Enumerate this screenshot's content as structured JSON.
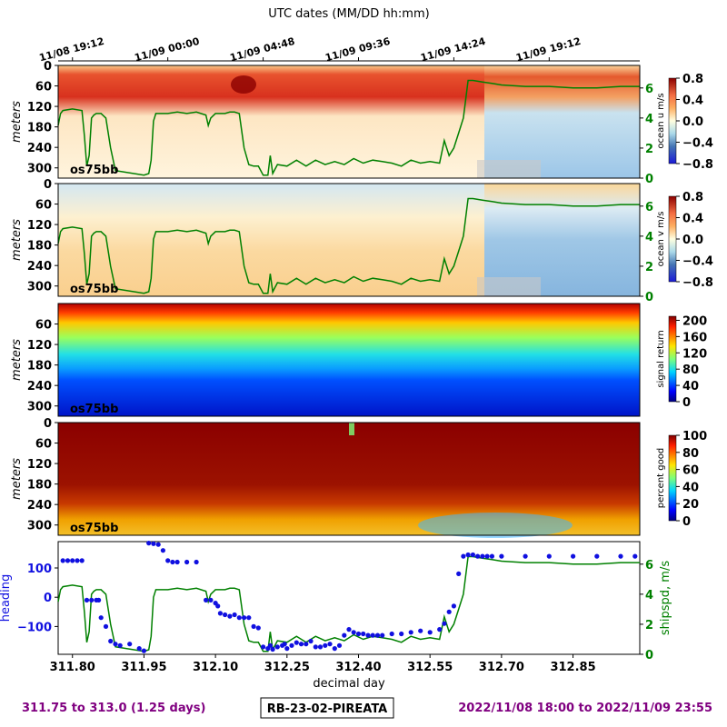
{
  "top_axis": {
    "label": "UTC dates (MM/DD hh:mm)",
    "ticks": [
      {
        "day": 311.8,
        "label": "11/08 19:12"
      },
      {
        "day": 312.0,
        "label": "11/09 00:00"
      },
      {
        "day": 312.2,
        "label": "11/09 04:48"
      },
      {
        "day": 312.4,
        "label": "11/09 09:36"
      },
      {
        "day": 312.6,
        "label": "11/09 14:24"
      },
      {
        "day": 312.8,
        "label": "11/09 19:12"
      }
    ]
  },
  "footer": {
    "range_days": "311.75 to 313.0 (1.25 days)",
    "cruise_id": "RB-23-02-PIREATA",
    "date_range": "2022/11/08 18:00 to 2022/11/09 23:55"
  },
  "colors": {
    "ship_speed": "#008000",
    "heading": "#1010e0",
    "footer_text": "#800080"
  },
  "chart_data": [
    {
      "type": "heatmap",
      "title": "",
      "instrument_label": "os75bb",
      "ylabel": "meters",
      "yticks": [
        0,
        60,
        120,
        180,
        240,
        300
      ],
      "ylim": [
        330,
        0
      ],
      "xlim": [
        311.77,
        312.99
      ],
      "colorbar": {
        "label": "ocean u m/s",
        "ticks": [
          "0.8",
          "0.4",
          "0.0",
          "−0.4",
          "−0.8"
        ],
        "range": [
          -0.8,
          0.8
        ],
        "colormap": "RdYlBu_r"
      },
      "overlay": {
        "name": "ship speed",
        "right_ticks": [
          "6",
          "4",
          "2",
          "0"
        ],
        "range": [
          0,
          7.5
        ]
      }
    },
    {
      "type": "heatmap",
      "title": "",
      "instrument_label": "os75bb",
      "ylabel": "meters",
      "yticks": [
        0,
        60,
        120,
        180,
        240,
        300
      ],
      "ylim": [
        330,
        0
      ],
      "xlim": [
        311.77,
        312.99
      ],
      "colorbar": {
        "label": "ocean v m/s",
        "ticks": [
          "0.8",
          "0.4",
          "0.0",
          "−0.4",
          "−0.8"
        ],
        "range": [
          -0.8,
          0.8
        ],
        "colormap": "RdYlBu_r"
      },
      "overlay": {
        "name": "ship speed",
        "right_ticks": [
          "6",
          "4",
          "2",
          "0"
        ],
        "range": [
          0,
          7.5
        ]
      }
    },
    {
      "type": "heatmap",
      "title": "",
      "instrument_label": "os75bb",
      "ylabel": "meters",
      "yticks": [
        60,
        120,
        180,
        240,
        300
      ],
      "ylim": [
        330,
        0
      ],
      "xlim": [
        311.77,
        312.99
      ],
      "colorbar": {
        "label": "signal return",
        "ticks": [
          "200",
          "160",
          "120",
          "80",
          "40",
          "0"
        ],
        "range": [
          0,
          210
        ],
        "colormap": "jet"
      }
    },
    {
      "type": "heatmap",
      "title": "",
      "instrument_label": "os75bb",
      "ylabel": "meters",
      "yticks": [
        0,
        60,
        120,
        180,
        240,
        300
      ],
      "ylim": [
        330,
        0
      ],
      "xlim": [
        311.77,
        312.99
      ],
      "colorbar": {
        "label": "percent good",
        "ticks": [
          "100",
          "80",
          "60",
          "40",
          "20",
          "0"
        ],
        "range": [
          0,
          100
        ],
        "colormap": "jet"
      }
    },
    {
      "type": "scatter",
      "title": "",
      "xlabel": "decimal day",
      "xlim": [
        311.77,
        312.99
      ],
      "xticks": [
        "311.80",
        "311.95",
        "312.10",
        "312.25",
        "312.40",
        "312.55",
        "312.70",
        "312.85"
      ],
      "xtick_values": [
        311.8,
        311.95,
        312.1,
        312.25,
        312.4,
        312.55,
        312.7,
        312.85
      ],
      "left_axis": {
        "label": "heading",
        "ticks": [
          "100",
          "0",
          "−100"
        ],
        "tick_values": [
          100,
          0,
          -100
        ],
        "ylim": [
          -195,
          190
        ]
      },
      "right_axis": {
        "label": "shipspd, m/s",
        "ticks": [
          "6",
          "4",
          "2",
          "0"
        ],
        "tick_values": [
          6,
          4,
          2,
          0
        ],
        "ylim": [
          0,
          7.5
        ]
      },
      "series": [
        {
          "name": "heading",
          "x": [
            311.78,
            311.79,
            311.8,
            311.81,
            311.82,
            311.83,
            311.84,
            311.85,
            311.855,
            311.86,
            311.87,
            311.88,
            311.89,
            311.9,
            311.92,
            311.94,
            311.95,
            311.96,
            311.97,
            311.98,
            311.99,
            312.0,
            312.01,
            312.02,
            312.04,
            312.06,
            312.08,
            312.09,
            312.1,
            312.105,
            312.11,
            312.12,
            312.13,
            312.14,
            312.15,
            312.16,
            312.17,
            312.18,
            312.19,
            312.2,
            312.21,
            312.215,
            312.22,
            312.23,
            312.24,
            312.245,
            312.25,
            312.26,
            312.27,
            312.28,
            312.29,
            312.3,
            312.31,
            312.32,
            312.33,
            312.34,
            312.35,
            312.36,
            312.37,
            312.38,
            312.39,
            312.4,
            312.41,
            312.42,
            312.43,
            312.44,
            312.45,
            312.47,
            312.49,
            312.51,
            312.53,
            312.55,
            312.57,
            312.58,
            312.59,
            312.6,
            312.61,
            312.62,
            312.63,
            312.64,
            312.65,
            312.66,
            312.67,
            312.68,
            312.7,
            312.75,
            312.8,
            312.85,
            312.9,
            312.95,
            312.98
          ],
          "values": [
            125,
            125,
            125,
            125,
            125,
            -10,
            -10,
            -10,
            -10,
            -70,
            -100,
            -150,
            -160,
            -165,
            -160,
            -175,
            -183,
            185,
            183,
            180,
            160,
            125,
            120,
            120,
            120,
            120,
            -10,
            -10,
            -20,
            -30,
            -55,
            -60,
            -65,
            -60,
            -70,
            -70,
            -70,
            -100,
            -105,
            -170,
            -175,
            -165,
            -178,
            -170,
            -165,
            -160,
            -175,
            -165,
            -155,
            -160,
            -160,
            -150,
            -170,
            -170,
            -165,
            -160,
            -175,
            -165,
            -130,
            -110,
            -120,
            -125,
            -125,
            -130,
            -130,
            -130,
            -130,
            -125,
            -125,
            -120,
            -115,
            -120,
            -110,
            -90,
            -50,
            -30,
            80,
            140,
            145,
            145,
            140,
            140,
            140,
            140,
            140,
            140,
            140,
            140,
            140,
            140,
            140
          ]
        },
        {
          "name": "ship speed",
          "x": [
            311.77,
            311.775,
            311.78,
            311.8,
            311.82,
            311.825,
            311.83,
            311.835,
            311.84,
            311.845,
            311.85,
            311.86,
            311.87,
            311.875,
            311.88,
            311.89,
            311.95,
            311.96,
            311.965,
            311.97,
            311.975,
            311.98,
            312.0,
            312.02,
            312.04,
            312.06,
            312.08,
            312.085,
            312.09,
            312.1,
            312.12,
            312.13,
            312.14,
            312.15,
            312.16,
            312.17,
            312.18,
            312.19,
            312.2,
            312.21,
            312.215,
            312.22,
            312.23,
            312.25,
            312.27,
            312.29,
            312.31,
            312.33,
            312.35,
            312.37,
            312.39,
            312.41,
            312.43,
            312.45,
            312.47,
            312.49,
            312.51,
            312.53,
            312.55,
            312.57,
            312.58,
            312.59,
            312.6,
            312.61,
            312.62,
            312.63,
            312.64,
            312.66,
            312.68,
            312.7,
            312.75,
            312.8,
            312.85,
            312.9,
            312.95,
            312.99
          ],
          "values": [
            3.5,
            4.3,
            4.5,
            4.6,
            4.5,
            2.8,
            0.8,
            1.5,
            4.0,
            4.2,
            4.3,
            4.3,
            4.0,
            3.0,
            2.0,
            0.5,
            0.2,
            0.3,
            1.2,
            3.8,
            4.3,
            4.3,
            4.3,
            4.4,
            4.3,
            4.4,
            4.2,
            3.5,
            4.0,
            4.3,
            4.3,
            4.4,
            4.4,
            4.3,
            2.0,
            0.9,
            0.8,
            0.8,
            0.2,
            0.2,
            1.5,
            0.3,
            0.9,
            0.8,
            1.2,
            0.8,
            1.2,
            0.9,
            1.1,
            0.9,
            1.3,
            1.0,
            1.2,
            1.1,
            1.0,
            0.8,
            1.2,
            1.0,
            1.1,
            1.0,
            2.5,
            1.5,
            2.0,
            3.0,
            4.0,
            6.5,
            6.5,
            6.4,
            6.3,
            6.2,
            6.1,
            6.1,
            6.0,
            6.0,
            6.1,
            6.1
          ]
        }
      ]
    }
  ]
}
